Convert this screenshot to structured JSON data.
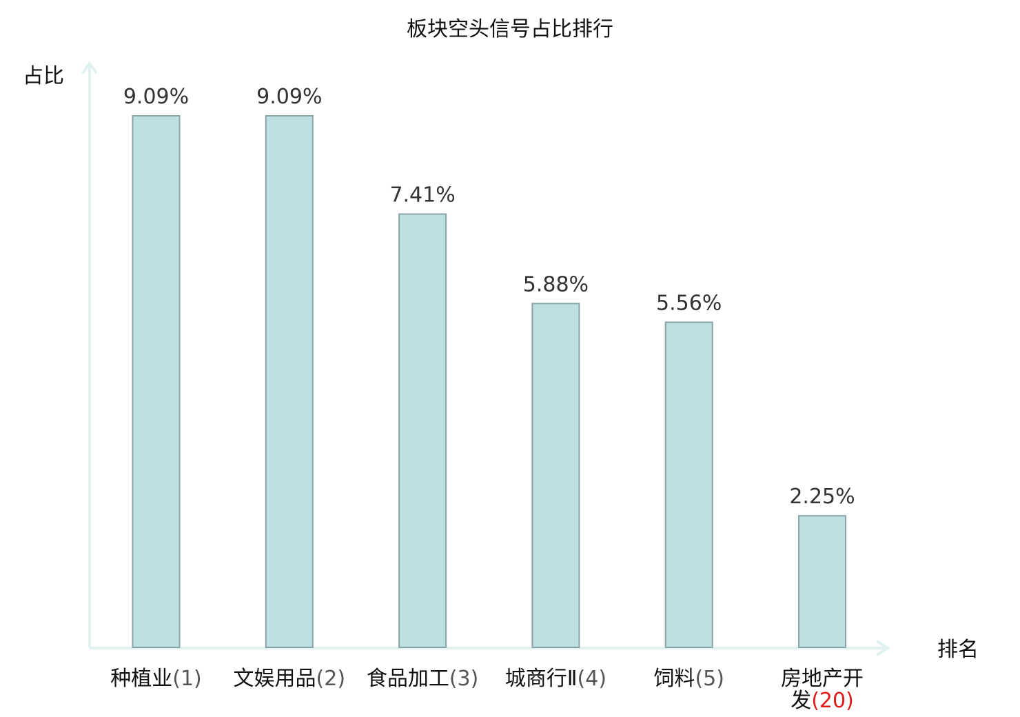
{
  "chart_data": {
    "type": "bar",
    "title": "板块空头信号占比排行",
    "ylabel": "占比",
    "xlabel": "排名",
    "ylim": [
      0,
      10
    ],
    "grid": false,
    "categories": [
      {
        "name": "种植业",
        "rank": "(1)",
        "highlight": false
      },
      {
        "name": "文娱用品",
        "rank": "(2)",
        "highlight": false
      },
      {
        "name": "食品加工",
        "rank": "(3)",
        "highlight": false
      },
      {
        "name": "城商行Ⅱ",
        "rank": "(4)",
        "highlight": false
      },
      {
        "name": "饲料",
        "rank": "(5)",
        "highlight": false
      },
      {
        "name": "房地产开发",
        "rank": "(20)",
        "highlight": true
      }
    ],
    "values": [
      9.09,
      9.09,
      7.41,
      5.88,
      5.56,
      2.25
    ],
    "value_labels": [
      "9.09%",
      "9.09%",
      "7.41%",
      "5.88%",
      "5.56%",
      "2.25%"
    ],
    "colors": {
      "bar_fill": "#bde0e3",
      "bar_stroke": "#8aa3a6",
      "axis": "#e0f2ef",
      "highlight_label": "#e11a1a",
      "label": "#111111",
      "value_label": "#333333"
    }
  }
}
